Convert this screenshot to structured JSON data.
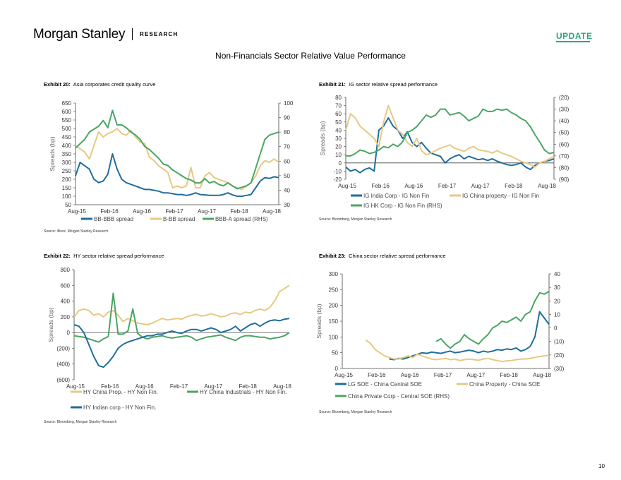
{
  "header": {
    "brand": "Morgan Stanley",
    "brand_sub": "RESEARCH",
    "badge": "UPDATE",
    "page_title": "Non-Financials Sector Relative Value Performance",
    "page_number": "10"
  },
  "colors": {
    "blue": "#1f6e9c",
    "tan": "#e6c982",
    "green": "#4aa564",
    "accent": "#2aa67d"
  },
  "chart_data": [
    {
      "id": "ex20",
      "type": "line",
      "exhibit": "Exhibit 20:",
      "title": "Asia corporates credit quality curve",
      "ylabel": "Spreads (bp)",
      "ylim": [
        50,
        650
      ],
      "yticks": [
        "650",
        "600",
        "550",
        "500",
        "450",
        "400",
        "350",
        "300",
        "250",
        "200",
        "150",
        "100",
        "50"
      ],
      "y2lim": [
        30,
        100
      ],
      "y2ticks": [
        "100",
        "90",
        "80",
        "70",
        "60",
        "50",
        "40",
        "30"
      ],
      "xticks": [
        "Aug-15",
        "Feb-16",
        "Aug-16",
        "Feb-17",
        "Aug-17",
        "Feb-18",
        "Aug-18"
      ],
      "series": [
        {
          "name": "BB-BBB spread",
          "color": "blue",
          "axis": "left",
          "values": [
            220,
            300,
            280,
            260,
            200,
            180,
            190,
            230,
            350,
            260,
            200,
            180,
            170,
            160,
            150,
            140,
            140,
            135,
            130,
            120,
            120,
            115,
            110,
            110,
            105,
            110,
            120,
            110,
            108,
            105,
            105,
            105,
            110,
            120,
            108,
            100,
            100,
            105,
            110,
            150,
            190,
            210,
            205,
            215,
            210
          ]
        },
        {
          "name": "B-BB spread",
          "color": "tan",
          "axis": "left",
          "values": [
            400,
            380,
            360,
            320,
            400,
            480,
            450,
            470,
            480,
            500,
            470,
            460,
            490,
            450,
            420,
            410,
            330,
            310,
            280,
            260,
            240,
            150,
            160,
            150,
            160,
            270,
            150,
            150,
            220,
            240,
            210,
            200,
            190,
            180,
            160,
            150,
            140,
            160,
            180,
            220,
            280,
            310,
            300,
            320,
            300
          ]
        },
        {
          "name": "BBB-A spread (RHS)",
          "color": "green",
          "axis": "right",
          "values": [
            69,
            72,
            75,
            80,
            82,
            84,
            88,
            83,
            95,
            85,
            85,
            83,
            80,
            78,
            75,
            70,
            68,
            65,
            62,
            58,
            57,
            54,
            52,
            50,
            48,
            47,
            45,
            45,
            48,
            45,
            46,
            44,
            43,
            45,
            43,
            41,
            42,
            43,
            45,
            55,
            65,
            75,
            78,
            79,
            80
          ]
        }
      ],
      "legend": [
        "BB-BBB spread",
        "B-BB spread",
        "BBB-A spread (RHS)"
      ],
      "source": "Source: iBoxx, Morgan Stanley Research"
    },
    {
      "id": "ex21",
      "type": "line",
      "exhibit": "Exhibit 21:",
      "title": "IG sector relative spread performance",
      "ylabel": "Spreads (bp)",
      "ylim": [
        -20,
        80
      ],
      "yticks": [
        "80",
        "70",
        "60",
        "50",
        "40",
        "30",
        "20",
        "10",
        "0",
        "-10",
        "-20"
      ],
      "y2lim": [
        -90,
        -20
      ],
      "y2ticks": [
        "(20)",
        "(30)",
        "(40)",
        "(50)",
        "(60)",
        "(70)",
        "(80)",
        "(90)"
      ],
      "xticks": [
        "Aug-15",
        "Feb-16",
        "Aug-16",
        "Feb-17",
        "Aug-17",
        "Feb-18",
        "Aug-18"
      ],
      "series": [
        {
          "name": "IG India Corp - IG Non Fin",
          "color": "blue",
          "axis": "left",
          "values": [
            -5,
            -10,
            -8,
            -12,
            -8,
            -6,
            -10,
            40,
            45,
            55,
            45,
            40,
            30,
            38,
            25,
            20,
            25,
            18,
            12,
            10,
            8,
            0,
            5,
            8,
            10,
            5,
            8,
            6,
            4,
            5,
            3,
            5,
            2,
            0,
            -2,
            -3,
            -2,
            0,
            -5,
            -8,
            -3,
            0,
            2,
            3,
            5
          ]
        },
        {
          "name": "IG China property - IG Non Fin",
          "color": "tan",
          "axis": "left",
          "values": [
            40,
            60,
            55,
            45,
            40,
            35,
            30,
            20,
            50,
            70,
            55,
            40,
            35,
            25,
            20,
            30,
            15,
            10,
            12,
            15,
            18,
            20,
            22,
            18,
            16,
            14,
            18,
            20,
            16,
            15,
            14,
            12,
            15,
            12,
            10,
            8,
            5,
            2,
            0,
            -2,
            -5,
            0,
            2,
            5,
            8
          ]
        },
        {
          "name": "IG HK Corp - IG Non Fin (RHS)",
          "color": "green",
          "axis": "right",
          "values": [
            -70,
            -70,
            -68,
            -65,
            -66,
            -68,
            -67,
            -65,
            -62,
            -63,
            -60,
            -62,
            -58,
            -50,
            -48,
            -45,
            -40,
            -35,
            -37,
            -35,
            -30,
            -30,
            -35,
            -34,
            -33,
            -36,
            -40,
            -38,
            -36,
            -30,
            -32,
            -32,
            -30,
            -31,
            -30,
            -33,
            -35,
            -38,
            -40,
            -45,
            -52,
            -58,
            -65,
            -68,
            -67
          ]
        }
      ],
      "legend": [
        "IG India Corp - IG Non Fin",
        "IG China property - IG Non Fin",
        "IG HK Corp - IG Non Fin (RHS)"
      ],
      "source": "Source: Bloomberg, Morgan Stanley Research"
    },
    {
      "id": "ex22",
      "type": "line",
      "exhibit": "Exhibit 22:",
      "title": "HY sector relative spread performance",
      "ylabel": "Spreads (bp)",
      "ylim": [
        -600,
        800
      ],
      "yticks": [
        "800",
        "600",
        "400",
        "200",
        "0",
        "(200)",
        "(400)",
        "(600)"
      ],
      "xticks": [
        "Aug-15",
        "Feb-16",
        "Aug-16",
        "Feb-17",
        "Aug-17",
        "Feb-18",
        "Aug-18"
      ],
      "series": [
        {
          "name": "HY China Prop. - HY Non Fin.",
          "color": "tan",
          "axis": "left",
          "values": [
            200,
            280,
            300,
            280,
            220,
            240,
            200,
            260,
            280,
            220,
            140,
            180,
            150,
            120,
            110,
            100,
            120,
            150,
            180,
            160,
            170,
            180,
            170,
            200,
            220,
            230,
            210,
            220,
            240,
            220,
            200,
            210,
            240,
            250,
            230,
            260,
            250,
            280,
            300,
            280,
            320,
            400,
            520,
            560,
            600
          ]
        },
        {
          "name": "HY China Industrials - HY Non Fin.",
          "color": "green",
          "axis": "left",
          "values": [
            -40,
            -50,
            -60,
            -80,
            -100,
            -120,
            -80,
            -50,
            500,
            -20,
            -20,
            20,
            300,
            -10,
            -60,
            -80,
            -60,
            -50,
            -40,
            -60,
            -70,
            -60,
            -50,
            -40,
            -60,
            -100,
            -80,
            -60,
            -50,
            -40,
            -30,
            -60,
            -80,
            -100,
            -60,
            -40,
            -40,
            -50,
            -60,
            -60,
            -80,
            -70,
            -60,
            -40,
            0
          ]
        },
        {
          "name": "HY Indian corp - HY Non Fin.",
          "color": "blue",
          "axis": "left",
          "values": [
            100,
            80,
            0,
            -150,
            -300,
            -420,
            -440,
            -380,
            -300,
            -200,
            -150,
            -120,
            -100,
            -80,
            -60,
            -40,
            -40,
            -20,
            -20,
            0,
            20,
            0,
            -10,
            20,
            40,
            40,
            20,
            40,
            60,
            40,
            0,
            20,
            40,
            80,
            20,
            60,
            100,
            120,
            80,
            120,
            150,
            160,
            150,
            170,
            180
          ]
        }
      ],
      "legend": [
        "HY China Prop. - HY Non Fin.",
        "HY China Industrials - HY Non Fin.",
        "HY Indian corp - HY Non Fin."
      ],
      "source": "Source: Bloomberg, Morgan Stanley Research"
    },
    {
      "id": "ex23",
      "type": "line",
      "exhibit": "Exhibit 23:",
      "title": "China sector relative spread performance",
      "ylabel": "Spreads (bp)",
      "ylim": [
        0,
        300
      ],
      "yticks": [
        "300",
        "250",
        "200",
        "150",
        "100",
        "50",
        "0"
      ],
      "y2lim": [
        -30,
        40
      ],
      "y2ticks": [
        "40",
        "30",
        "20",
        "10",
        "0",
        "(10)",
        "(20)",
        "(30)"
      ],
      "xticks": [
        "Aug-15",
        "Feb-16",
        "Aug-16",
        "Feb-17",
        "Aug-17",
        "Feb-18",
        "Aug-18"
      ],
      "series": [
        {
          "name": "LG SOE - China Central SOE",
          "color": "blue",
          "axis": "left",
          "values": [
            null,
            null,
            null,
            null,
            null,
            null,
            null,
            null,
            null,
            null,
            30,
            28,
            32,
            30,
            35,
            40,
            45,
            50,
            48,
            52,
            50,
            48,
            52,
            55,
            50,
            52,
            55,
            58,
            55,
            50,
            55,
            52,
            55,
            60,
            58,
            62,
            60,
            65,
            55,
            60,
            70,
            100,
            180,
            160,
            140
          ]
        },
        {
          "name": "China Property - China SOE",
          "color": "tan",
          "axis": "left",
          "values": [
            null,
            null,
            null,
            null,
            null,
            90,
            80,
            60,
            50,
            40,
            35,
            30,
            30,
            35,
            40,
            35,
            45,
            40,
            35,
            30,
            28,
            30,
            32,
            28,
            30,
            25,
            28,
            30,
            28,
            26,
            30,
            32,
            28,
            25,
            22,
            24,
            25,
            28,
            30,
            30,
            32,
            35,
            38,
            40,
            42
          ]
        },
        {
          "name": "China Private Corp - Central SOE (RHS)",
          "color": "green",
          "axis": "right",
          "values": [
            null,
            null,
            null,
            null,
            null,
            null,
            null,
            null,
            null,
            null,
            null,
            null,
            null,
            null,
            null,
            null,
            null,
            null,
            null,
            null,
            -10,
            -8,
            -12,
            -15,
            -12,
            -10,
            -5,
            -8,
            -10,
            -12,
            -8,
            -5,
            0,
            2,
            5,
            4,
            6,
            8,
            5,
            10,
            12,
            20,
            26,
            25,
            27
          ]
        }
      ],
      "legend": [
        "LG SOE - China Central SOE",
        "China Property - China SOE",
        "China Private Corp - Central SOE (RHS)"
      ],
      "source": "Source: Bloomberg, Morgan Stanley Research"
    }
  ]
}
